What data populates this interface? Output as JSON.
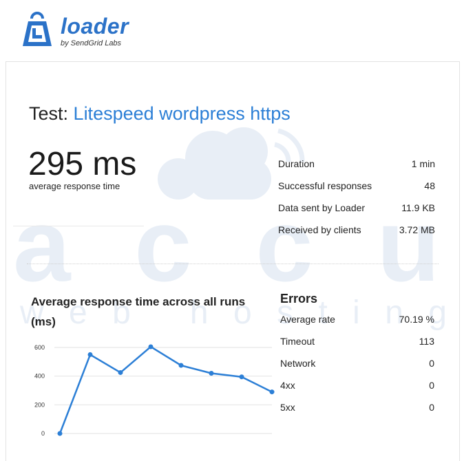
{
  "brand": {
    "name": "loader",
    "tagline": "by SendGrid Labs",
    "color": "#2b72c8"
  },
  "test": {
    "prefix": "Test:",
    "name": "Litespeed wordpress https"
  },
  "summary": {
    "avg_response": "295 ms",
    "avg_response_label": "average response time"
  },
  "stats": [
    {
      "label": "Duration",
      "value": "1 min"
    },
    {
      "label": "Successful responses",
      "value": "48"
    },
    {
      "label": "Data sent by Loader",
      "value": "11.9 KB"
    },
    {
      "label": "Received by clients",
      "value": "3.72 MB"
    }
  ],
  "chart_title": "Average response time across all runs (ms)",
  "chart_data": {
    "type": "line",
    "title": "Average response time across all runs (ms)",
    "x": [
      1,
      2,
      3,
      4,
      5,
      6,
      7,
      8
    ],
    "series": [
      {
        "values": [
          0,
          550,
          425,
          605,
          475,
          420,
          395,
          290
        ]
      }
    ],
    "y_ticks": [
      "0",
      "200",
      "400",
      "600"
    ],
    "ylim": [
      0,
      600
    ],
    "grid": true,
    "color": "#2c7fd6"
  },
  "errors": {
    "title": "Errors",
    "rows": [
      {
        "label": "Average rate",
        "value": "70.19 %"
      },
      {
        "label": "Timeout",
        "value": "113"
      },
      {
        "label": "Network",
        "value": "0"
      },
      {
        "label": "4xx",
        "value": "0"
      },
      {
        "label": "5xx",
        "value": "0"
      }
    ]
  },
  "watermark": {
    "line1": "accu",
    "line2": "web hosting"
  }
}
